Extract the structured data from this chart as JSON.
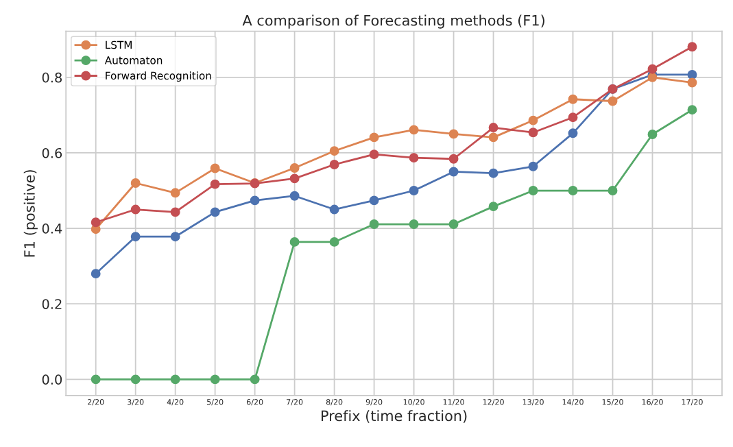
{
  "chart_data": {
    "type": "line",
    "title": "A comparison of Forecasting methods (F1)",
    "xlabel": "Prefix (time fraction)",
    "ylabel": "F1 (positive)",
    "categories": [
      "2/20",
      "3/20",
      "4/20",
      "5/20",
      "6/20",
      "7/20",
      "8/20",
      "9/20",
      "10/20",
      "11/20",
      "12/20",
      "13/20",
      "14/20",
      "15/20",
      "16/20",
      "17/20"
    ],
    "series": [
      {
        "color": "#4c72b0",
        "values": [
          0.28,
          0.378,
          0.378,
          0.443,
          0.474,
          0.486,
          0.45,
          0.474,
          0.5,
          0.55,
          0.546,
          0.564,
          0.652,
          0.769,
          0.807,
          0.807
        ]
      },
      {
        "name": "LSTM",
        "color": "#dd8452",
        "values": [
          0.398,
          0.52,
          0.494,
          0.559,
          0.52,
          0.56,
          0.605,
          0.641,
          0.661,
          0.65,
          0.641,
          0.686,
          0.742,
          0.737,
          0.8,
          0.786
        ]
      },
      {
        "name": "Automaton",
        "color": "#55a868",
        "values": [
          0,
          0,
          0,
          0,
          0,
          0.364,
          0.364,
          0.411,
          0.411,
          0.411,
          0.458,
          0.5,
          0.5,
          0.5,
          0.649,
          0.714
        ]
      },
      {
        "name": "Forward Recognition",
        "color": "#c44e52",
        "values": [
          0.416,
          0.45,
          0.443,
          0.517,
          0.519,
          0.532,
          0.569,
          0.596,
          0.587,
          0.584,
          0.667,
          0.654,
          0.694,
          0.769,
          0.822,
          0.881
        ]
      }
    ],
    "ylim": [
      -0.043,
      0.922
    ],
    "yticks": [
      {
        "value": 0,
        "label": "0.0"
      },
      0.2,
      0.4,
      0.6,
      0.8
    ],
    "grid": true,
    "legend": "top left",
    "marker": "circle",
    "line_style": "solid"
  }
}
